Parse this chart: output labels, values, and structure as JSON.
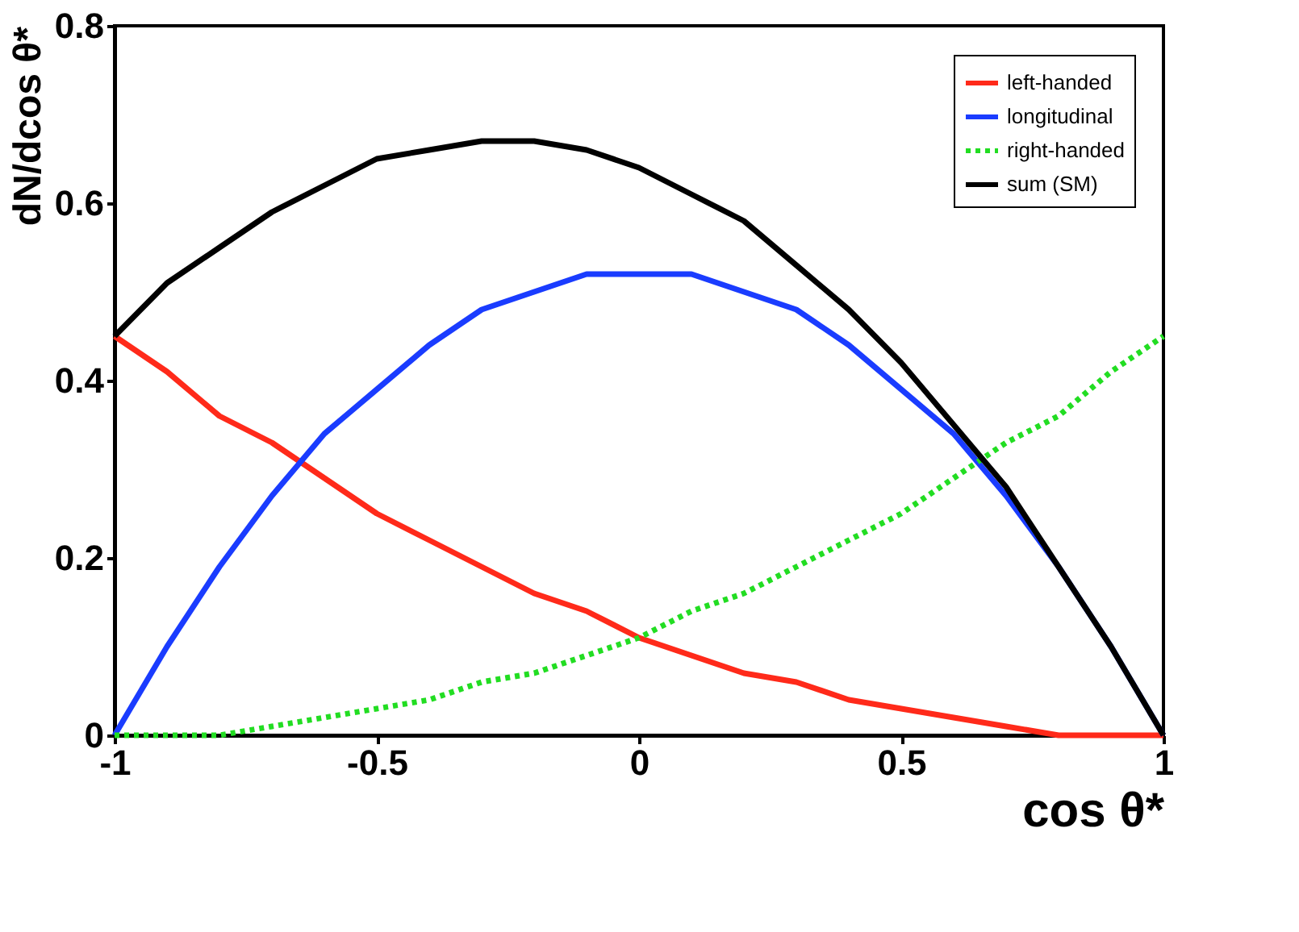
{
  "chart_data": {
    "type": "line",
    "xlabel": "cos θ*",
    "ylabel": "dN/dcos θ*",
    "x": [
      -1,
      -0.9,
      -0.8,
      -0.7,
      -0.6,
      -0.5,
      -0.4,
      -0.3,
      -0.2,
      -0.1,
      0,
      0.1,
      0.2,
      0.3,
      0.4,
      0.5,
      0.6,
      0.7,
      0.8,
      0.9,
      1
    ],
    "series": [
      {
        "name": "left-handed",
        "color": "#ff2a1a",
        "line_style": "solid",
        "values": [
          0.45,
          0.41,
          0.36,
          0.33,
          0.29,
          0.25,
          0.22,
          0.19,
          0.16,
          0.14,
          0.11,
          0.09,
          0.07,
          0.06,
          0.04,
          0.03,
          0.02,
          0.01,
          0,
          0,
          0
        ]
      },
      {
        "name": "longitudinal",
        "color": "#1a3cff",
        "line_style": "solid",
        "values": [
          0,
          0.1,
          0.19,
          0.27,
          0.34,
          0.39,
          0.44,
          0.48,
          0.5,
          0.52,
          0.52,
          0.52,
          0.5,
          0.48,
          0.44,
          0.39,
          0.34,
          0.27,
          0.19,
          0.1,
          0
        ]
      },
      {
        "name": "right-handed",
        "color": "#22dd22",
        "line_style": "dotted",
        "values": [
          0,
          0,
          0,
          0.01,
          0.02,
          0.03,
          0.04,
          0.06,
          0.07,
          0.09,
          0.11,
          0.14,
          0.16,
          0.19,
          0.22,
          0.25,
          0.29,
          0.33,
          0.36,
          0.41,
          0.45
        ]
      },
      {
        "name": "sum (SM)",
        "color": "#000000",
        "line_style": "solid",
        "values": [
          0.45,
          0.51,
          0.55,
          0.59,
          0.62,
          0.65,
          0.66,
          0.67,
          0.67,
          0.66,
          0.64,
          0.61,
          0.58,
          0.53,
          0.48,
          0.42,
          0.35,
          0.28,
          0.19,
          0.1,
          0
        ]
      }
    ],
    "xlim": [
      -1,
      1
    ],
    "xticks": [
      {
        "value": -1,
        "label": "-1"
      },
      {
        "value": -0.5,
        "label": "-0.5"
      },
      {
        "value": 0,
        "label": "0"
      },
      {
        "value": 0.5,
        "label": "0.5"
      },
      {
        "value": 1,
        "label": "1"
      }
    ],
    "ylim": [
      0,
      0.8
    ],
    "yticks": [
      {
        "value": 0,
        "label": "0"
      },
      0.2,
      0.4,
      0.6,
      0.8
    ],
    "grid": false,
    "legend": "top right"
  }
}
